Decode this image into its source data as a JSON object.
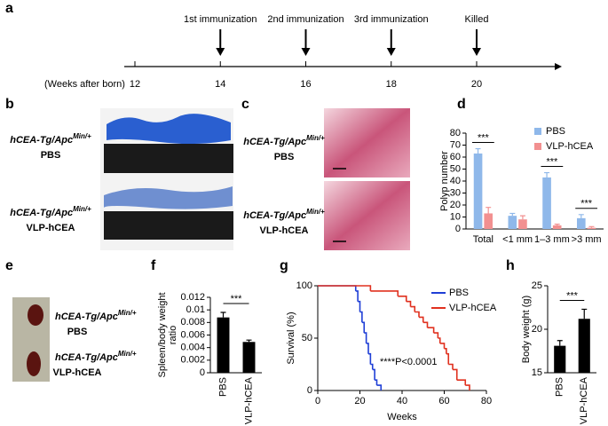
{
  "panel_labels": [
    "a",
    "b",
    "c",
    "d",
    "e",
    "f",
    "g",
    "h"
  ],
  "timeline": {
    "axis_label": "(Weeks after born)",
    "ticks": [
      12,
      14,
      16,
      18,
      20
    ],
    "events": [
      {
        "label": "1st immunization",
        "week": 14
      },
      {
        "label": "2nd immunization",
        "week": 16
      },
      {
        "label": "3rd immunization",
        "week": 18
      },
      {
        "label": "Killed",
        "week": 20
      }
    ]
  },
  "photo_labels": {
    "b": [
      {
        "genotype": "hCEA-Tg/Apc",
        "superscript": "Min/+",
        "group": "PBS"
      },
      {
        "genotype": "hCEA-Tg/Apc",
        "superscript": "Min/+",
        "group": "VLP-hCEA"
      }
    ],
    "c": [
      {
        "genotype": "hCEA-Tg/Apc",
        "superscript": "Min/+",
        "group": "PBS"
      },
      {
        "genotype": "hCEA-Tg/Apc",
        "superscript": "Min/+",
        "group": "VLP-hCEA"
      }
    ],
    "e": [
      {
        "genotype": "hCEA-Tg/Apc",
        "superscript": "Min/+",
        "group": "PBS"
      },
      {
        "genotype": "hCEA-Tg/Apc",
        "superscript": "Min/+",
        "group": "VLP-hCEA"
      }
    ]
  },
  "chart_data": [
    {
      "type": "bar",
      "ylabel": [
        "Polyp number"
      ],
      "categories": [
        "Total",
        "<1 mm",
        "1–3 mm",
        ">3 mm"
      ],
      "series": [
        {
          "name": "PBS",
          "color": "#8fb8ea",
          "values": [
            63,
            11,
            43,
            9
          ],
          "errors": [
            4,
            2,
            4,
            3
          ]
        },
        {
          "name": "VLP-hCEA",
          "color": "#f29090",
          "values": [
            13,
            8,
            3,
            1
          ],
          "errors": [
            5,
            3,
            1,
            1
          ]
        }
      ],
      "significance": [
        "***",
        null,
        "***",
        "***"
      ],
      "ylim": [
        0,
        80
      ],
      "yticks": [
        0,
        10,
        20,
        30,
        40,
        50,
        60,
        70,
        80
      ],
      "legend": "upper right"
    },
    {
      "type": "bar",
      "ylabel": [
        "Spleen/body weight",
        "ratio"
      ],
      "categories": [
        "PBS",
        "VLP-hCEA"
      ],
      "xtick_rotation": 90,
      "values": [
        0.0088,
        0.0049
      ],
      "errors": [
        0.0008,
        0.0003
      ],
      "color": "#000000",
      "significance": "***",
      "ylim": [
        0,
        0.012
      ],
      "yticks": [
        0,
        0.002,
        0.004,
        0.006,
        0.008,
        0.01,
        0.012
      ]
    },
    {
      "type": "line",
      "step": true,
      "xlabel": "Weeks",
      "ylabel": [
        "Survival (%)"
      ],
      "annotation": "****P<0.0001",
      "series": [
        {
          "name": "PBS",
          "color": "#1f3fd6",
          "x": [
            0,
            18,
            19,
            20,
            21,
            22,
            23,
            24,
            25,
            26,
            27,
            28,
            30
          ],
          "values": [
            100,
            95,
            85,
            75,
            65,
            55,
            45,
            35,
            25,
            20,
            10,
            5,
            0
          ]
        },
        {
          "name": "VLP-hCEA",
          "color": "#e0301e",
          "x": [
            0,
            25,
            38,
            42,
            44,
            46,
            48,
            50,
            52,
            55,
            57,
            58,
            60,
            61,
            62,
            64,
            66,
            70,
            72
          ],
          "values": [
            100,
            95,
            90,
            85,
            80,
            75,
            70,
            65,
            60,
            55,
            50,
            45,
            40,
            35,
            25,
            20,
            10,
            5,
            0
          ]
        }
      ],
      "xlim": [
        0,
        80
      ],
      "xticks": [
        0,
        20,
        40,
        60,
        80
      ],
      "ylim": [
        0,
        100
      ],
      "yticks": [
        0,
        50,
        100
      ],
      "legend": "upper right"
    },
    {
      "type": "bar",
      "ylabel": [
        "Body weight (g)"
      ],
      "categories": [
        "PBS",
        "VLP-hCEA"
      ],
      "xtick_rotation": 90,
      "values": [
        18.1,
        21.2
      ],
      "errors": [
        0.6,
        1.1
      ],
      "color": "#000000",
      "significance": "***",
      "ylim": [
        15,
        25
      ],
      "yticks": [
        15,
        20,
        25
      ]
    }
  ]
}
